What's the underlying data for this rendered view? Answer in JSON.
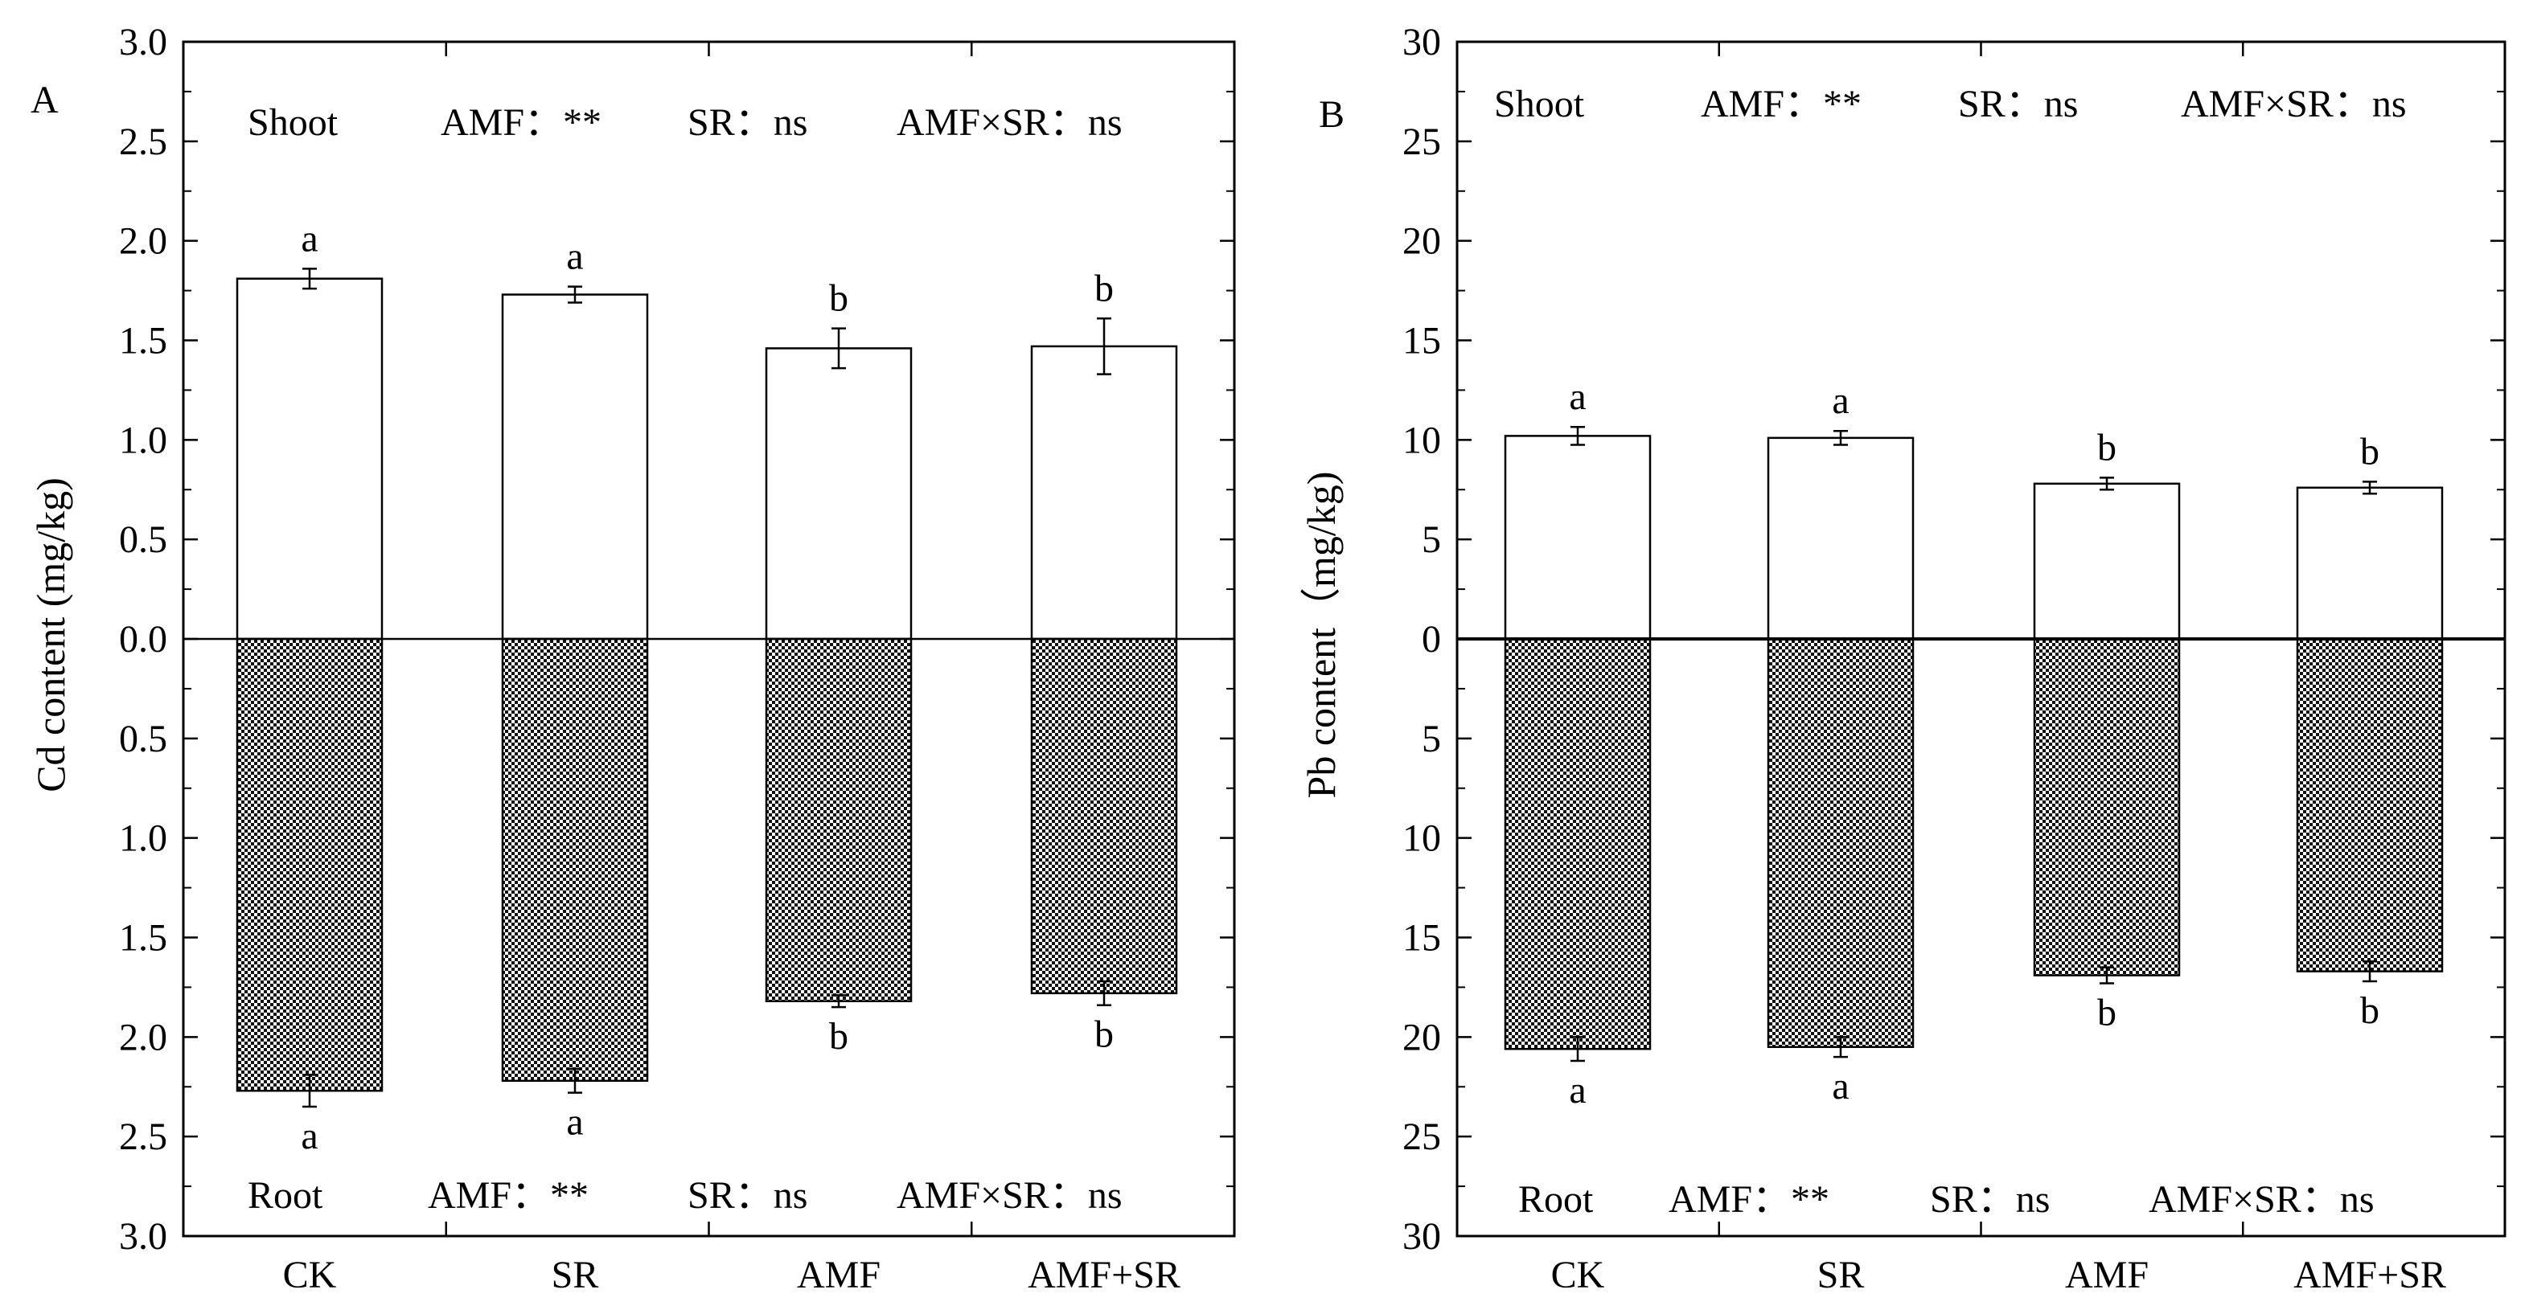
{
  "chart_data": [
    {
      "type": "bar",
      "panel_label": "A",
      "ylabel": "Cd content (mg/kg)",
      "xlabel": "",
      "categories": [
        "CK",
        "SR",
        "AMF",
        "AMF+SR"
      ],
      "ylim": [
        -3.0,
        3.0
      ],
      "y_ticks": [
        "3.0",
        "2.5",
        "2.0",
        "1.5",
        "1.0",
        "0.5",
        "0.0",
        "0.5",
        "1.0",
        "1.5",
        "2.0",
        "2.5",
        "3.0"
      ],
      "series": [
        {
          "name": "Shoot",
          "values": [
            1.81,
            1.73,
            1.46,
            1.47
          ],
          "errors": [
            0.05,
            0.04,
            0.1,
            0.14
          ],
          "letters": [
            "a",
            "a",
            "b",
            "b"
          ]
        },
        {
          "name": "Root",
          "values": [
            2.27,
            2.22,
            1.82,
            1.78
          ],
          "errors": [
            0.08,
            0.06,
            0.03,
            0.06
          ],
          "letters": [
            "a",
            "a",
            "b",
            "b"
          ]
        }
      ],
      "annotations": {
        "shoot": {
          "label": "Shoot",
          "amf": "AMF：**",
          "sr": "SR：ns",
          "inter": "AMF×SR：ns"
        },
        "root": {
          "label": "Root",
          "amf": "AMF：**",
          "sr": "SR：ns",
          "inter": "AMF×SR：ns"
        }
      }
    },
    {
      "type": "bar",
      "panel_label": "B",
      "ylabel": "Pb content（mg/kg)",
      "xlabel": "",
      "categories": [
        "CK",
        "SR",
        "AMF",
        "AMF+SR"
      ],
      "ylim": [
        -30,
        30
      ],
      "y_ticks": [
        "30",
        "25",
        "20",
        "15",
        "10",
        "5",
        "0",
        "5",
        "10",
        "15",
        "20",
        "25",
        "30"
      ],
      "series": [
        {
          "name": "Shoot",
          "values": [
            10.2,
            10.1,
            7.8,
            7.6
          ],
          "errors": [
            0.45,
            0.35,
            0.3,
            0.3
          ],
          "letters": [
            "a",
            "a",
            "b",
            "b"
          ]
        },
        {
          "name": "Root",
          "values": [
            20.6,
            20.5,
            16.9,
            16.7
          ],
          "errors": [
            0.6,
            0.5,
            0.4,
            0.5
          ],
          "letters": [
            "a",
            "a",
            "b",
            "b"
          ]
        }
      ],
      "annotations": {
        "shoot": {
          "label": "Shoot",
          "amf": "AMF：**",
          "sr": "SR：ns",
          "inter": "AMF×SR：ns"
        },
        "root": {
          "label": "Root",
          "amf": "AMF：**",
          "sr": "SR：ns",
          "inter": "AMF×SR：ns"
        }
      }
    }
  ]
}
